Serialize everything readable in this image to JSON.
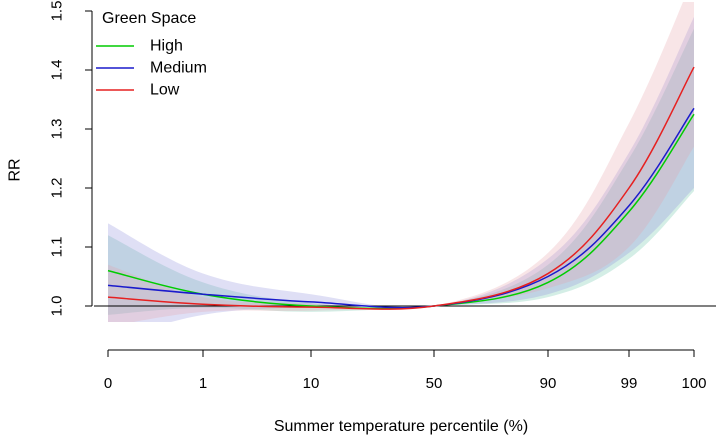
{
  "chart_data": {
    "type": "line",
    "title": "",
    "xlabel": "Summer temperature percentile (%)",
    "ylabel": "RR",
    "ylim": [
      0.95,
      1.5
    ],
    "x_ticks": [
      "0",
      "1",
      "10",
      "50",
      "90",
      "99",
      "100"
    ],
    "y_ticks": [
      "1.0",
      "1.1",
      "1.2",
      "1.3",
      "1.4",
      "1.5"
    ],
    "reference_line": 1.0,
    "grid": false,
    "legend": {
      "title": "Green Space",
      "position": "top-left"
    },
    "series": [
      {
        "name": "High",
        "color": "#00cc00",
        "band_color": "#66c2a5",
        "x": [
          "0",
          "1",
          "10",
          "50",
          "90",
          "99",
          "100"
        ],
        "values": [
          1.06,
          1.02,
          1.0,
          1.0,
          1.04,
          1.16,
          1.325
        ],
        "lower": [
          0.985,
          0.997,
          0.99,
          1.0,
          1.015,
          1.08,
          1.195
        ],
        "upper": [
          1.12,
          1.04,
          1.005,
          1.0,
          1.07,
          1.25,
          1.47
        ]
      },
      {
        "name": "Medium",
        "color": "#1a1acc",
        "band_color": "#8c8cdc",
        "x": [
          "0",
          "1",
          "10",
          "50",
          "90",
          "99",
          "100"
        ],
        "values": [
          1.035,
          1.02,
          1.007,
          1.0,
          1.05,
          1.17,
          1.335
        ],
        "lower": [
          0.94,
          0.985,
          0.998,
          1.0,
          1.02,
          1.09,
          1.2
        ],
        "upper": [
          1.14,
          1.055,
          1.02,
          1.0,
          1.08,
          1.26,
          1.49
        ]
      },
      {
        "name": "Low",
        "color": "#e62020",
        "band_color": "#e6a0a8",
        "x": [
          "0",
          "1",
          "10",
          "50",
          "90",
          "99",
          "100"
        ],
        "values": [
          1.015,
          1.003,
          0.998,
          1.0,
          1.055,
          1.2,
          1.405
        ],
        "lower": [
          0.965,
          0.99,
          0.992,
          1.0,
          1.03,
          1.1,
          1.27
        ],
        "upper": [
          1.07,
          1.015,
          1.004,
          1.0,
          1.09,
          1.31,
          1.56
        ]
      }
    ]
  }
}
